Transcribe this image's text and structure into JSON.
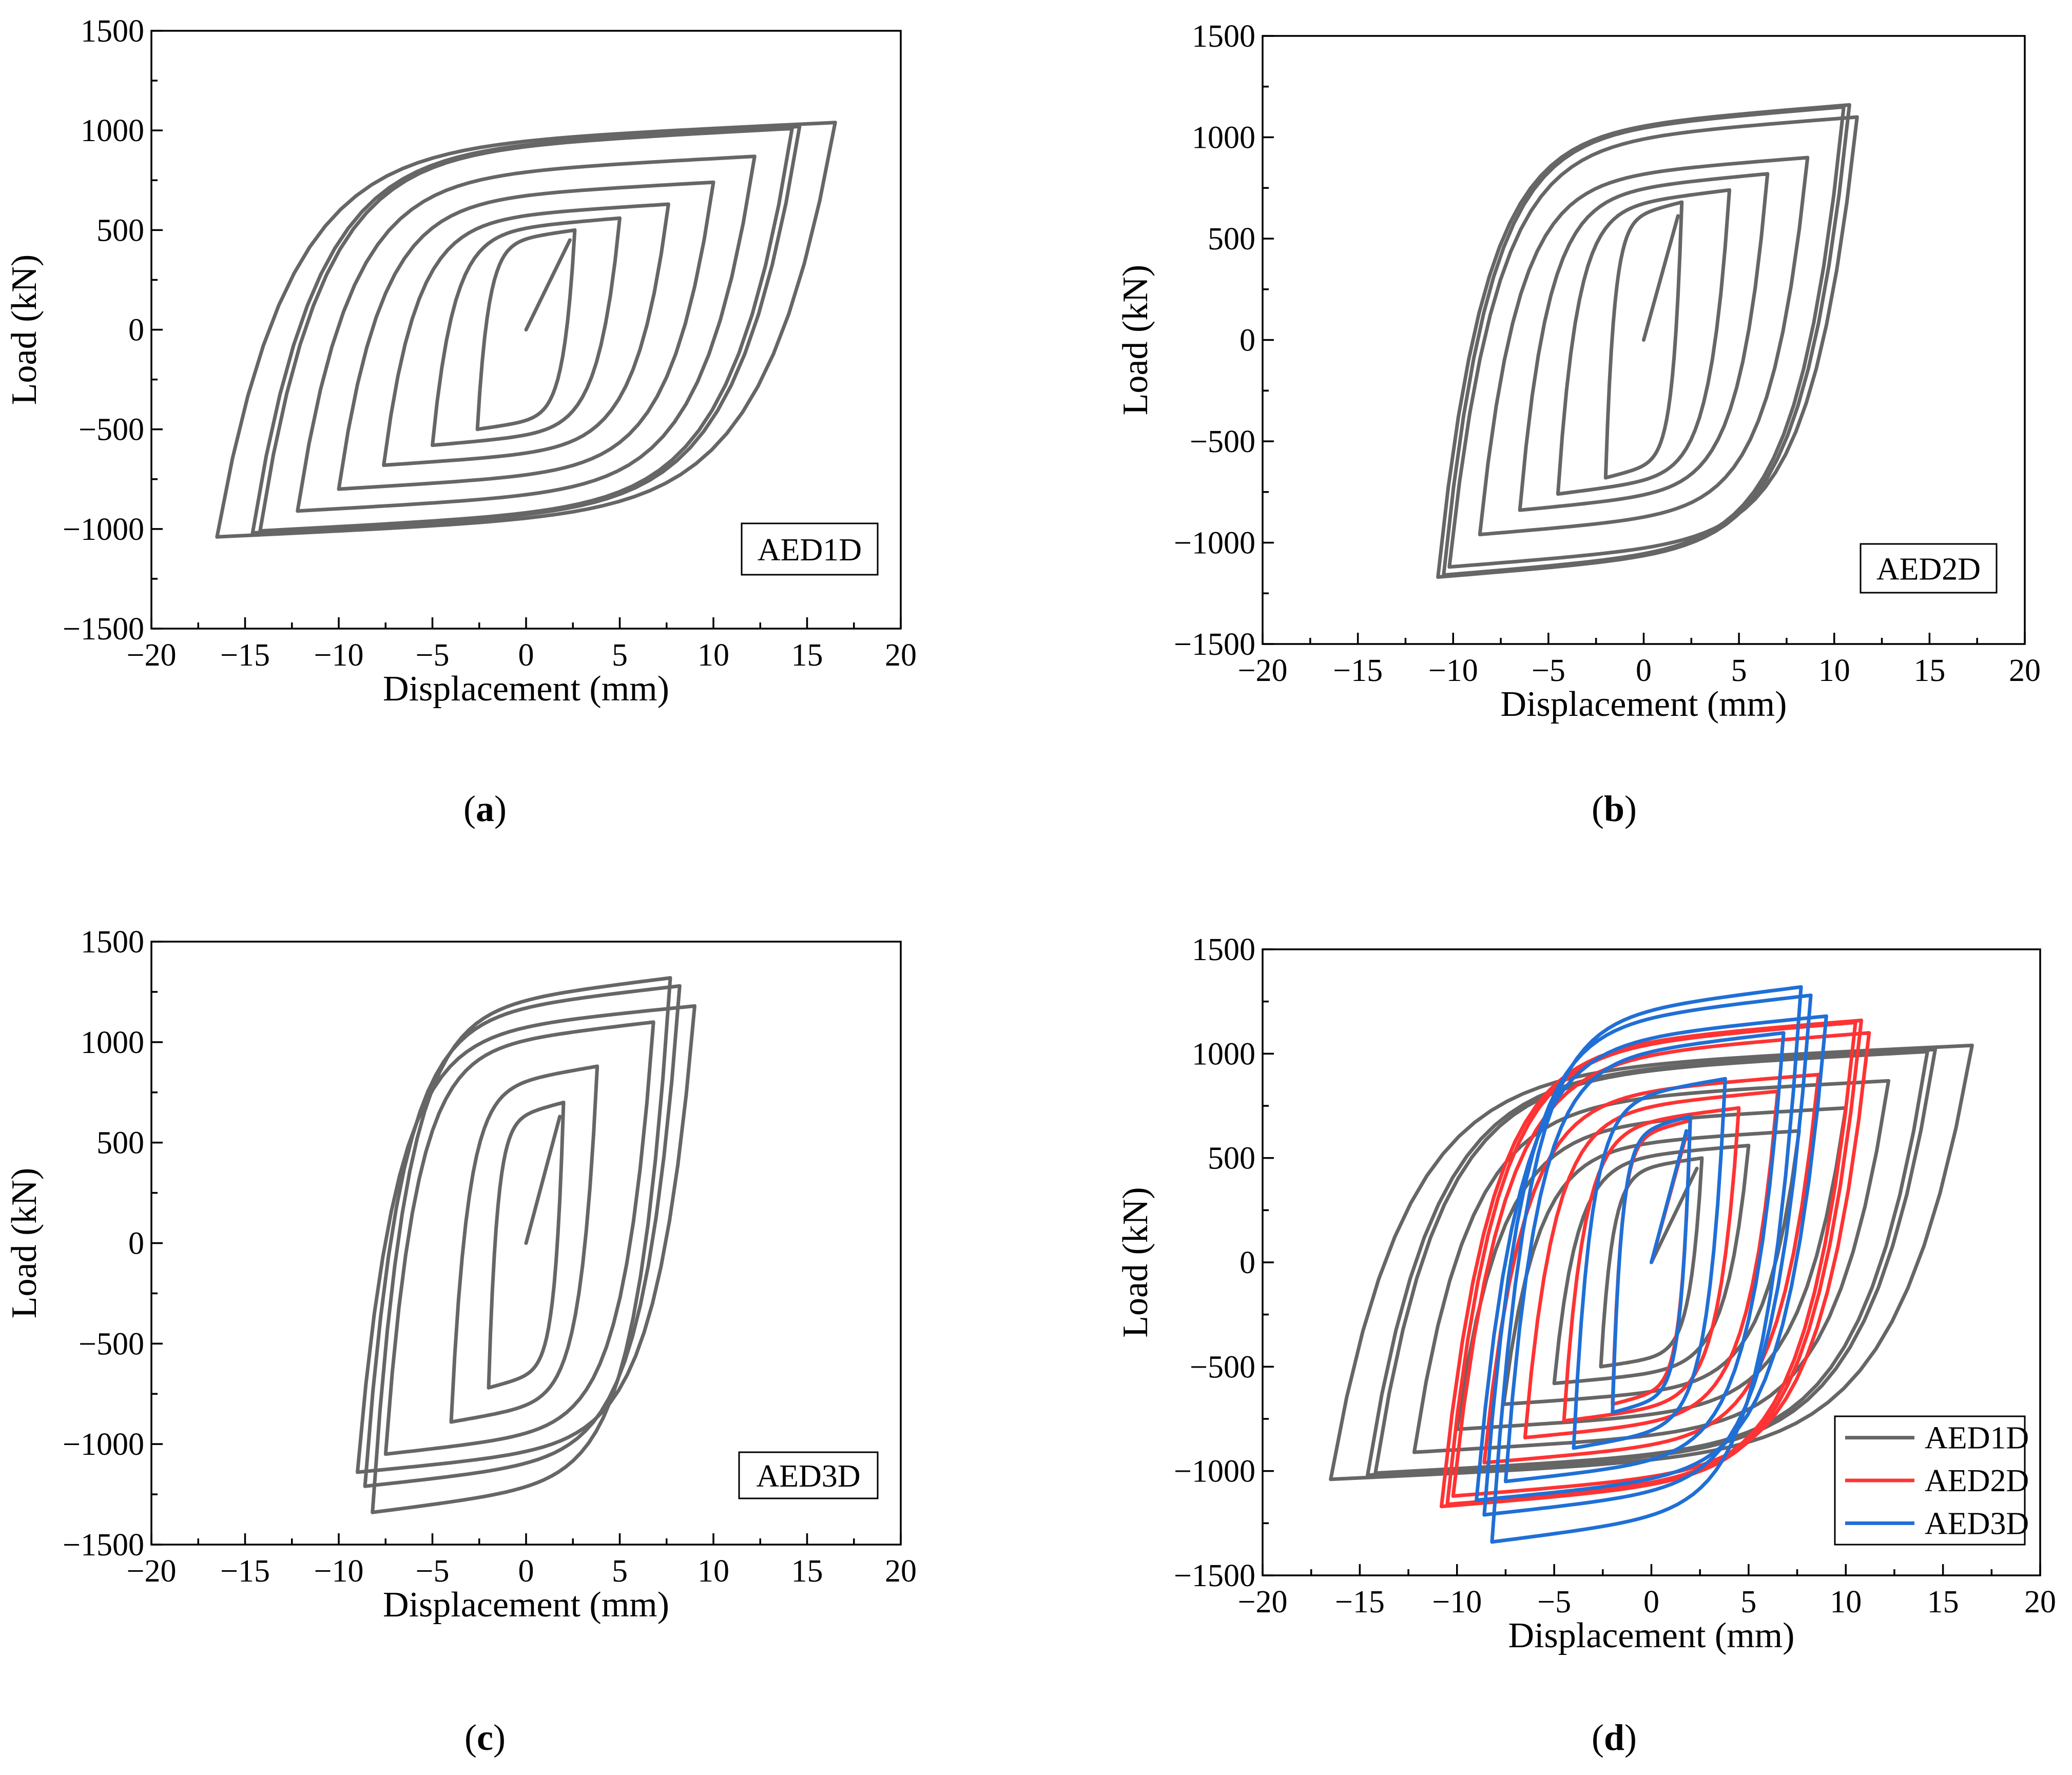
{
  "chart_data": [
    {
      "id": "a",
      "type": "line",
      "caption": "a",
      "xlabel": "Displacement (mm)",
      "ylabel": "Load (kN)",
      "xlim": [
        -20,
        20
      ],
      "ylim": [
        -1500,
        1500
      ],
      "xticks": [
        -20,
        -15,
        -10,
        -5,
        0,
        5,
        10,
        15,
        20
      ],
      "yticks": [
        -1500,
        -1000,
        -500,
        0,
        500,
        1000,
        1500
      ],
      "xtick_labels": [
        "−20",
        "−15",
        "−10",
        "−5",
        "0",
        "5",
        "10",
        "15",
        "20"
      ],
      "ytick_labels": [
        "−1500",
        "−1000",
        "−500",
        "0",
        "500",
        "1000",
        "1500"
      ],
      "annotation": "AED1D",
      "series": [
        {
          "name": "AED1D",
          "color": "#666666",
          "loops": [
            {
              "dmax": 2.6,
              "fmax": 500,
              "dmin": -2.6,
              "fmin": -500
            },
            {
              "dmax": 5.0,
              "fmax": 560,
              "dmin": -5.0,
              "fmin": -580
            },
            {
              "dmax": 7.6,
              "fmax": 630,
              "dmin": -7.6,
              "fmin": -680
            },
            {
              "dmax": 10.0,
              "fmax": 740,
              "dmin": -10.0,
              "fmin": -800
            },
            {
              "dmax": 12.2,
              "fmax": 870,
              "dmin": -12.2,
              "fmin": -910
            },
            {
              "dmax": 14.2,
              "fmax": 1010,
              "dmin": -14.2,
              "fmin": -1010
            },
            {
              "dmax": 14.6,
              "fmax": 1020,
              "dmin": -14.6,
              "fmin": -1020
            },
            {
              "dmax": 16.5,
              "fmax": 1040,
              "dmin": -16.5,
              "fmin": -1040
            }
          ]
        }
      ]
    },
    {
      "id": "b",
      "type": "line",
      "caption": "b",
      "xlabel": "Displacement (mm)",
      "ylabel": "Load (kN)",
      "xlim": [
        -20,
        20
      ],
      "ylim": [
        -1500,
        1500
      ],
      "xticks": [
        -20,
        -15,
        -10,
        -5,
        0,
        5,
        10,
        15,
        20
      ],
      "yticks": [
        -1500,
        -1000,
        -500,
        0,
        500,
        1000,
        1500
      ],
      "xtick_labels": [
        "−20",
        "−15",
        "−10",
        "−5",
        "0",
        "5",
        "10",
        "15",
        "20"
      ],
      "ytick_labels": [
        "−1500",
        "−1000",
        "−500",
        "0",
        "500",
        "1000",
        "1500"
      ],
      "annotation": "AED2D",
      "series": [
        {
          "name": "AED2D",
          "color": "#666666",
          "loops": [
            {
              "dmax": 2.0,
              "fmax": 680,
              "dmin": -2.0,
              "fmin": -680
            },
            {
              "dmax": 4.5,
              "fmax": 740,
              "dmin": -4.5,
              "fmin": -760
            },
            {
              "dmax": 6.5,
              "fmax": 820,
              "dmin": -6.5,
              "fmin": -840
            },
            {
              "dmax": 8.6,
              "fmax": 900,
              "dmin": -8.6,
              "fmin": -960
            },
            {
              "dmax": 10.5,
              "fmax": 1150,
              "dmin": -10.5,
              "fmin": -1160
            },
            {
              "dmax": 10.8,
              "fmax": 1160,
              "dmin": -10.8,
              "fmin": -1170
            },
            {
              "dmax": 11.2,
              "fmax": 1100,
              "dmin": -10.2,
              "fmin": -1120
            }
          ]
        }
      ]
    },
    {
      "id": "c",
      "type": "line",
      "caption": "c",
      "xlabel": "Displacement (mm)",
      "ylabel": "Load (kN)",
      "xlim": [
        -20,
        20
      ],
      "ylim": [
        -1500,
        1500
      ],
      "xticks": [
        -20,
        -15,
        -10,
        -5,
        0,
        5,
        10,
        15,
        20
      ],
      "yticks": [
        -1500,
        -1000,
        -500,
        0,
        500,
        1000,
        1500
      ],
      "xtick_labels": [
        "−20",
        "−15",
        "−10",
        "−5",
        "0",
        "5",
        "10",
        "15",
        "20"
      ],
      "ytick_labels": [
        "−1500",
        "−1000",
        "−500",
        "0",
        "500",
        "1000",
        "1500"
      ],
      "annotation": "AED3D",
      "series": [
        {
          "name": "AED3D",
          "color": "#666666",
          "loops": [
            {
              "dmax": 2.0,
              "fmax": 700,
              "dmin": -2.0,
              "fmin": -720
            },
            {
              "dmax": 3.8,
              "fmax": 880,
              "dmin": -4.0,
              "fmin": -890
            },
            {
              "dmax": 6.8,
              "fmax": 1100,
              "dmin": -7.5,
              "fmin": -1050
            },
            {
              "dmax": 7.7,
              "fmax": 1320,
              "dmin": -8.2,
              "fmin": -1340
            },
            {
              "dmax": 8.2,
              "fmax": 1280,
              "dmin": -8.6,
              "fmin": -1210
            },
            {
              "dmax": 9.0,
              "fmax": 1180,
              "dmin": -9.0,
              "fmin": -1140
            }
          ]
        }
      ]
    },
    {
      "id": "d",
      "type": "line",
      "caption": "d",
      "xlabel": "Displacement (mm)",
      "ylabel": "Load (kN)",
      "xlim": [
        -20,
        20
      ],
      "ylim": [
        -1500,
        1500
      ],
      "xticks": [
        -20,
        -15,
        -10,
        -5,
        0,
        5,
        10,
        15,
        20
      ],
      "yticks": [
        -1500,
        -1000,
        -500,
        0,
        500,
        1000,
        1500
      ],
      "xtick_labels": [
        "−20",
        "−15",
        "−10",
        "−5",
        "0",
        "5",
        "10",
        "15",
        "20"
      ],
      "ytick_labels": [
        "−1500",
        "−1000",
        "−500",
        "0",
        "500",
        "1000",
        "1500"
      ],
      "legend": {
        "position": "bottom-right",
        "entries": [
          "AED1D",
          "AED2D",
          "AED3D"
        ]
      },
      "series": [
        {
          "name": "AED1D",
          "color": "#666666",
          "ref": 0
        },
        {
          "name": "AED2D",
          "color": "#ff3333",
          "ref": 1
        },
        {
          "name": "AED3D",
          "color": "#1f6fd6",
          "ref": 2
        }
      ]
    }
  ]
}
